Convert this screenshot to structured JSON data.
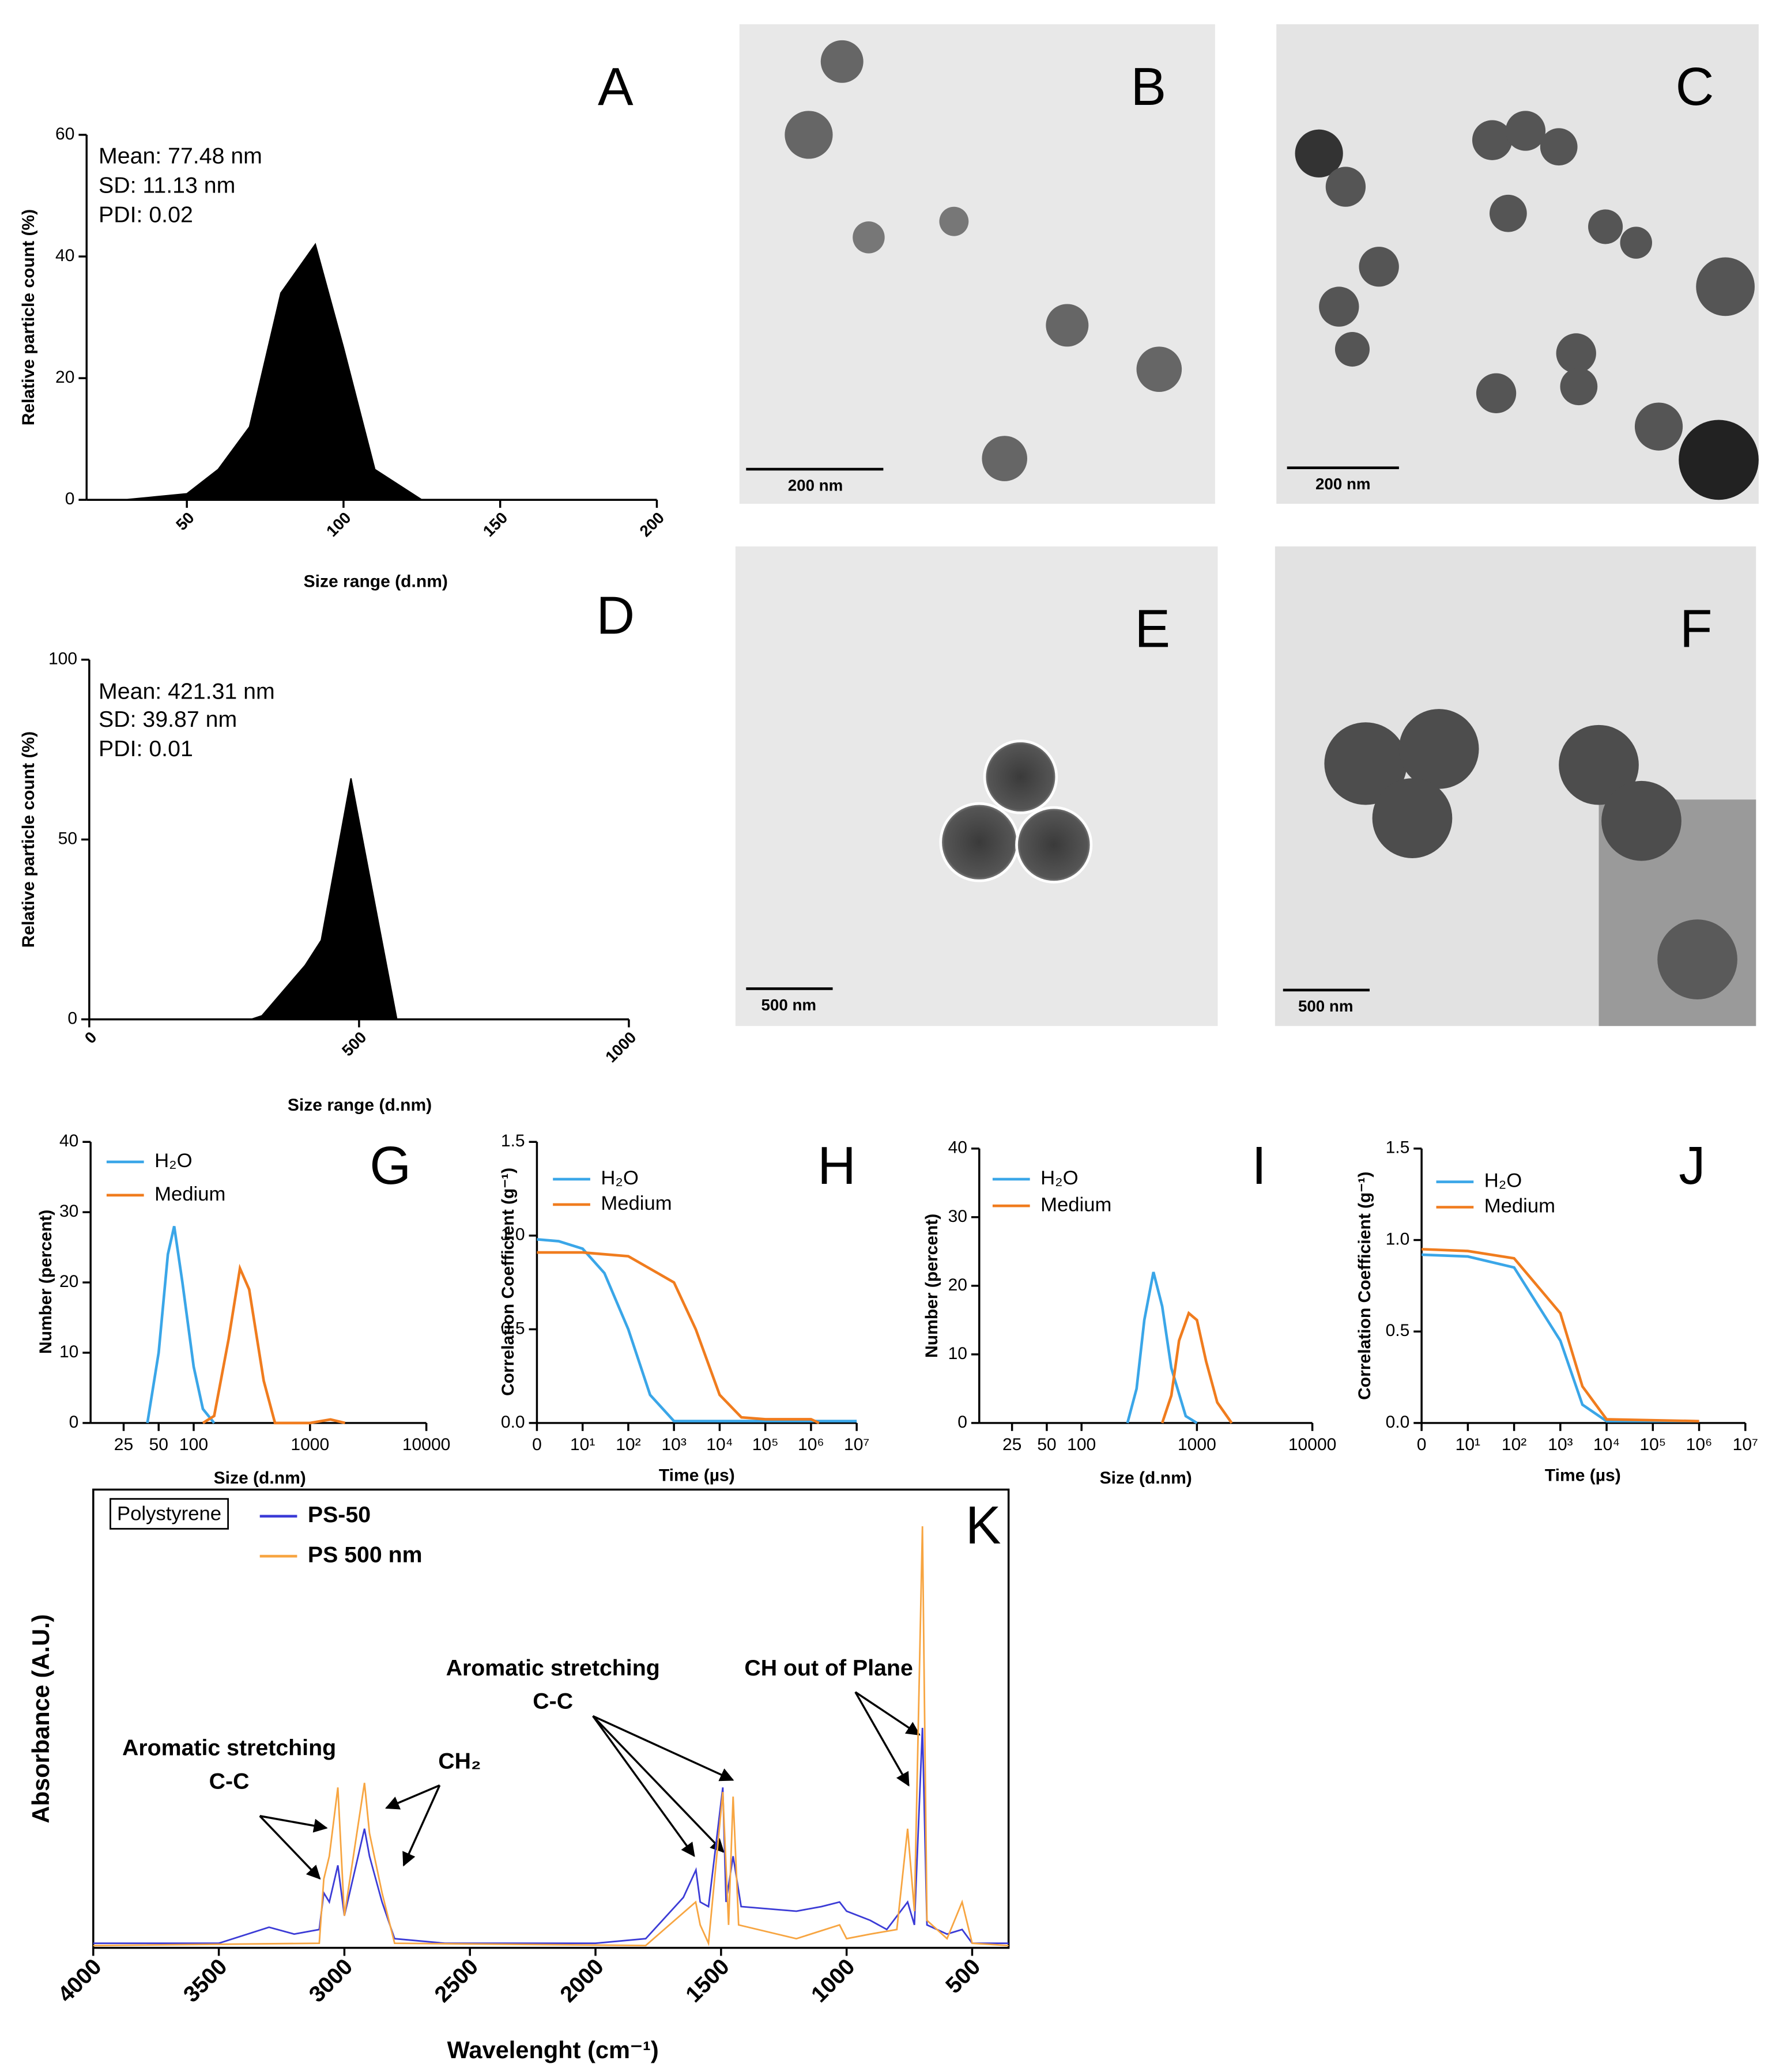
{
  "chart_data": [
    {
      "type": "area",
      "panel": "A",
      "color": "#000000",
      "annotations": [
        "Mean: 77.48 nm",
        "SD: 11.13 nm",
        "PDI: 0.02"
      ],
      "xlabel": "Size range (d.nm)",
      "ylabel": "Relative particle count (%)",
      "x": [
        30,
        40,
        50,
        60,
        70,
        80,
        91,
        100,
        110,
        125,
        200
      ],
      "values": [
        0,
        0.5,
        1,
        5,
        12,
        34,
        42,
        25,
        5,
        0,
        0
      ],
      "xlim": [
        18,
        200
      ],
      "xticks": [
        50,
        100,
        150,
        200
      ],
      "ylim": [
        0,
        60
      ],
      "yticks": [
        0,
        20,
        40,
        60
      ]
    },
    {
      "type": "area",
      "panel": "D",
      "color": "#000000",
      "annotations": [
        "Mean: 421.31 nm",
        "SD: 39.87 nm",
        "PDI: 0.01"
      ],
      "xlabel": "Size range (d.nm)",
      "ylabel": "Relative particle count (%)",
      "x": [
        0,
        300,
        320,
        400,
        430,
        485,
        570,
        1000
      ],
      "values": [
        0,
        0,
        1,
        15,
        22,
        67,
        0,
        0
      ],
      "xlim": [
        0,
        1000
      ],
      "xticks": [
        0,
        500,
        1000
      ],
      "ylim": [
        0,
        100
      ],
      "yticks": [
        0,
        50,
        100
      ]
    },
    {
      "type": "line",
      "panel": "G",
      "xscale": "log",
      "xlabel": "Size (d.nm)",
      "ylabel": "Number (percent)",
      "series": [
        {
          "name": "H₂O",
          "color": "#3aa6e8",
          "x": [
            40,
            50,
            60,
            68,
            80,
            100,
            120,
            150
          ],
          "values": [
            0,
            10,
            24,
            28,
            20,
            8,
            2,
            0
          ]
        },
        {
          "name": "Medium",
          "color": "#f07c1e",
          "x": [
            120,
            150,
            200,
            250,
            300,
            400,
            500,
            1000,
            1500,
            2000
          ],
          "values": [
            0,
            1,
            12,
            22,
            19,
            6,
            0,
            0,
            0.5,
            0
          ]
        }
      ],
      "xlim": [
        13,
        10000
      ],
      "xticks": [
        25,
        50,
        100,
        1000,
        10000
      ],
      "ylim": [
        0,
        40
      ],
      "yticks": [
        0,
        10,
        20,
        30,
        40
      ]
    },
    {
      "type": "line",
      "panel": "H",
      "xscale": "log",
      "xlabel": "Time (µs)",
      "ylabel": "Correlation Coefficient (g⁻¹)",
      "series": [
        {
          "name": "H₂O",
          "color": "#3aa6e8",
          "x": [
            1,
            3,
            10,
            30,
            100,
            300,
            1000,
            10000000
          ],
          "values": [
            0.98,
            0.97,
            0.93,
            0.8,
            0.5,
            0.15,
            0.01,
            0.01
          ]
        },
        {
          "name": "Medium",
          "color": "#f07c1e",
          "x": [
            1,
            10,
            100,
            1000,
            3000,
            10000,
            30000,
            100000,
            1000000,
            1500000
          ],
          "values": [
            0.91,
            0.91,
            0.89,
            0.75,
            0.5,
            0.15,
            0.03,
            0.02,
            0.02,
            0
          ]
        }
      ],
      "xlim": [
        1,
        10000000
      ],
      "xticks": [
        {
          "value": 1,
          "label": "0"
        },
        {
          "value": 10,
          "label": "10¹"
        },
        {
          "value": 100,
          "label": "10²"
        },
        {
          "value": 1000,
          "label": "10³"
        },
        {
          "value": 10000,
          "label": "10⁴"
        },
        {
          "value": 100000,
          "label": "10⁵"
        },
        {
          "value": 1000000,
          "label": "10⁶"
        },
        {
          "value": 10000000,
          "label": "10⁷"
        }
      ],
      "ylim": [
        0,
        1.5
      ],
      "yticks": [
        {
          "value": 0,
          "label": "0.0"
        },
        0.5,
        {
          "value": 1,
          "label": "1.0"
        },
        1.5
      ]
    },
    {
      "type": "line",
      "panel": "I",
      "xscale": "log",
      "xlabel": "Size (d.nm)",
      "ylabel": "Number (percent)",
      "series": [
        {
          "name": "H₂O",
          "color": "#3aa6e8",
          "x": [
            250,
            300,
            350,
            420,
            500,
            600,
            800,
            1000
          ],
          "values": [
            0,
            5,
            15,
            22,
            17,
            8,
            1,
            0
          ]
        },
        {
          "name": "Medium",
          "color": "#f07c1e",
          "x": [
            500,
            600,
            700,
            850,
            1000,
            1200,
            1500,
            2000
          ],
          "values": [
            0,
            4,
            12,
            16,
            15,
            9,
            3,
            0
          ]
        }
      ],
      "xlim": [
        13,
        10000
      ],
      "xticks": [
        25,
        50,
        100,
        1000,
        10000
      ],
      "ylim": [
        0,
        40
      ],
      "yticks": [
        0,
        10,
        20,
        30,
        40
      ]
    },
    {
      "type": "line",
      "panel": "J",
      "xscale": "log",
      "xlabel": "Time (µs)",
      "ylabel": "Correlation Coefficient (g⁻¹)",
      "series": [
        {
          "name": "H₂O",
          "color": "#3aa6e8",
          "x": [
            1,
            10,
            100,
            1000,
            3000,
            10000,
            1000000
          ],
          "values": [
            0.92,
            0.91,
            0.85,
            0.45,
            0.1,
            0.01,
            0.01
          ]
        },
        {
          "name": "Medium",
          "color": "#f07c1e",
          "x": [
            1,
            10,
            100,
            1000,
            3000,
            10000,
            1000000
          ],
          "values": [
            0.95,
            0.94,
            0.9,
            0.6,
            0.2,
            0.02,
            0.01
          ]
        }
      ],
      "xlim": [
        1,
        10000000
      ],
      "xticks": [
        {
          "value": 1,
          "label": "0"
        },
        {
          "value": 10,
          "label": "10¹"
        },
        {
          "value": 100,
          "label": "10²"
        },
        {
          "value": 1000,
          "label": "10³"
        },
        {
          "value": 10000,
          "label": "10⁴"
        },
        {
          "value": 100000,
          "label": "10⁵"
        },
        {
          "value": 1000000,
          "label": "10⁶"
        },
        {
          "value": 10000000,
          "label": "10⁷"
        }
      ],
      "ylim": [
        0,
        1.5
      ],
      "yticks": [
        {
          "value": 0,
          "label": "0.0"
        },
        0.5,
        {
          "value": 1,
          "label": "1.0"
        },
        1.5
      ]
    },
    {
      "type": "line",
      "panel": "K",
      "annotations": [
        "Polystyrene",
        "Aromatic stretching",
        "C-C",
        "CH₂",
        "Aromatic stretching",
        "C-C",
        "CH out of Plane"
      ],
      "xlabel": "Wavelenght (cm⁻¹)",
      "ylabel": "Absorbance (A.U.)",
      "series": [
        {
          "name": "PS-50",
          "color": "#3b3bd6",
          "x": [
            4000,
            3500,
            3300,
            3200,
            3100,
            3082,
            3060,
            3026,
            3000,
            2920,
            2900,
            2850,
            2800,
            2600,
            2000,
            1800,
            1650,
            1600,
            1583,
            1550,
            1493,
            1480,
            1452,
            1420,
            1200,
            1100,
            1028,
            1000,
            906,
            840,
            757,
            730,
            698,
            680,
            600,
            540,
            500,
            355
          ],
          "values": [
            0.01,
            0.01,
            0.045,
            0.03,
            0.04,
            0.12,
            0.1,
            0.18,
            0.07,
            0.26,
            0.2,
            0.1,
            0.02,
            0.01,
            0.01,
            0.02,
            0.11,
            0.17,
            0.1,
            0.09,
            0.35,
            0.1,
            0.2,
            0.09,
            0.08,
            0.09,
            0.1,
            0.08,
            0.06,
            0.04,
            0.1,
            0.05,
            0.48,
            0.05,
            0.03,
            0.04,
            0.01,
            0.01
          ]
        },
        {
          "name": "PS 500 nm",
          "color": "#f7a541",
          "x": [
            4000,
            3100,
            3082,
            3060,
            3026,
            3000,
            2920,
            2900,
            2850,
            2800,
            1800,
            1601,
            1583,
            1550,
            1493,
            1470,
            1452,
            1430,
            1200,
            1028,
            1000,
            906,
            800,
            757,
            730,
            698,
            680,
            600,
            540,
            500,
            355
          ],
          "values": [
            0.005,
            0.01,
            0.15,
            0.2,
            0.35,
            0.07,
            0.36,
            0.25,
            0.12,
            0.01,
            0.005,
            0.1,
            0.05,
            0.01,
            0.34,
            0.05,
            0.33,
            0.05,
            0.02,
            0.05,
            0.02,
            0.03,
            0.04,
            0.26,
            0.08,
            0.92,
            0.06,
            0.02,
            0.1,
            0.01,
            0.005
          ]
        }
      ],
      "xlim": [
        4000,
        355
      ],
      "xticks": [
        4000,
        3500,
        3000,
        2500,
        2000,
        1500,
        1000,
        500
      ],
      "ylim": [
        0,
        1
      ]
    }
  ],
  "images": [
    {
      "panel": "B",
      "scale_bar": "200 nm"
    },
    {
      "panel": "C",
      "scale_bar": "200 nm"
    },
    {
      "panel": "E",
      "scale_bar": "500 nm"
    },
    {
      "panel": "F",
      "scale_bar": "500 nm"
    }
  ]
}
